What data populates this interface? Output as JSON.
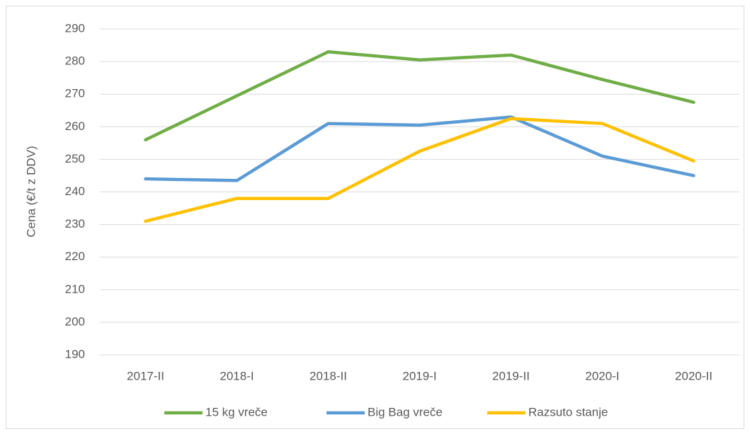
{
  "chart_data": {
    "type": "line",
    "y_label": "Cena (€/t z DDV)",
    "categories": [
      "2017-II",
      "2018-I",
      "2018-II",
      "2019-I",
      "2019-II",
      "2020-I",
      "2020-II"
    ],
    "series": [
      {
        "name": "15 kg vreče",
        "color": "#70ad47",
        "values": [
          256,
          269.5,
          283,
          280.5,
          282,
          274.5,
          267.5
        ]
      },
      {
        "name": "Big Bag vreče",
        "color": "#5b9bd5",
        "values": [
          244,
          243.5,
          261,
          260.5,
          263,
          251,
          245
        ]
      },
      {
        "name": "Razsuto stanje",
        "color": "#ffc000",
        "values": [
          231,
          238,
          238,
          252.5,
          262.5,
          261,
          249.5
        ]
      }
    ],
    "ylim": [
      190,
      290
    ],
    "yticks": [
      190,
      200,
      210,
      220,
      230,
      240,
      250,
      260,
      270,
      280,
      290
    ],
    "grid": true,
    "legend": "bottom"
  }
}
